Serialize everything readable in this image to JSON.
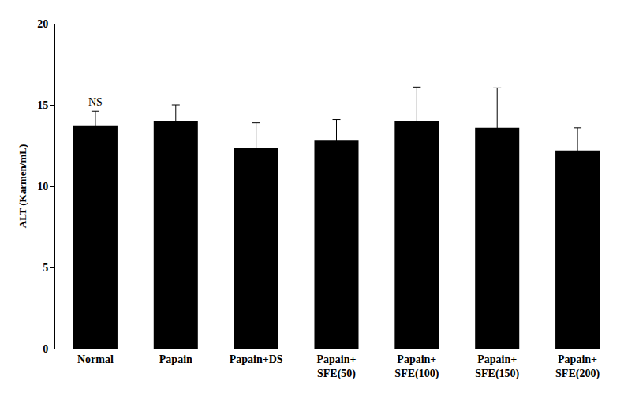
{
  "chart_data": {
    "type": "bar",
    "y_label": "ALT (Karmen/mL)",
    "categories": [
      "Normal",
      "Papain",
      "Papain+DS",
      "Papain+\nSFE(50)",
      "Papain+\nSFE(100)",
      "Papain+\nSFE(150)",
      "Papain+\nSFE(200)"
    ],
    "values": [
      13.7,
      14.0,
      12.35,
      12.8,
      14.0,
      13.6,
      12.2
    ],
    "error": [
      0.9,
      1.0,
      1.55,
      1.3,
      2.1,
      2.45,
      1.4
    ],
    "color": "#000000",
    "ylim": [
      0,
      20
    ],
    "yticks": [
      0,
      5,
      10,
      15,
      20
    ],
    "grid": false,
    "annotations": [
      {
        "category": "Normal",
        "text": "NS"
      }
    ]
  }
}
